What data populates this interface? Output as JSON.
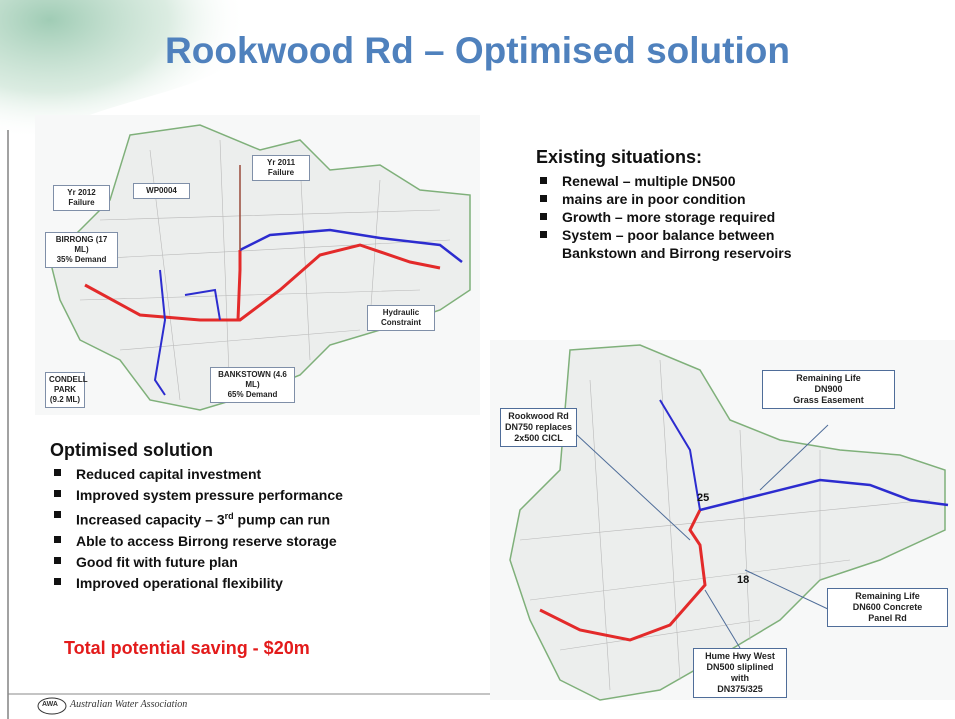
{
  "slide": {
    "title": "Rookwood Rd – Optimised solution",
    "map1": {
      "labels": [
        [
          "WP0004"
        ],
        [
          "Yr 2011",
          "Failure"
        ],
        [
          "Yr 2012",
          "Failure"
        ],
        [
          "BIRRONG (17 ML)",
          "35% Demand"
        ],
        [
          "Hydraulic",
          "Constraint"
        ],
        [
          "CONDELL",
          "PARK",
          "(9.2 ML)"
        ],
        [
          "BANKSTOWN (4.6 ML)",
          "65% Demand"
        ]
      ]
    },
    "existing": {
      "heading": "Existing situations:",
      "bullets": [
        [
          "Renewal – multiple DN500"
        ],
        [
          "mains are in poor condition"
        ],
        [
          "Growth – more storage required"
        ],
        [
          "System – poor balance between",
          "Bankstown and Birrong reservoirs"
        ]
      ]
    },
    "optimised": {
      "heading": "Optimised solution",
      "bullets": [
        [
          "Reduced capital investment"
        ],
        [
          "Improved system pressure performance"
        ],
        [
          "Increased capacity – 3",
          "rd",
          " pump can run"
        ],
        [
          "Able to access Birrong reserve storage"
        ],
        [
          "Good fit with future plan"
        ],
        [
          "Improved operational flexibility"
        ]
      ]
    },
    "saving": "Total potential saving - $20m",
    "map2": {
      "labels": [
        [
          "Rookwood Rd",
          "DN750 replaces",
          "2x500 CICL"
        ],
        [
          "Remaining Life",
          "DN900",
          "Grass Easement"
        ],
        [
          "Remaining Life",
          "DN600 Concrete",
          "Panel Rd"
        ],
        [
          "Hume Hwy West",
          "DN500 sliplined with",
          "DN375/325"
        ]
      ],
      "numbers": [
        "25",
        "18"
      ]
    },
    "footer": {
      "logo": "AWA",
      "org": "Australian Water Association"
    }
  }
}
